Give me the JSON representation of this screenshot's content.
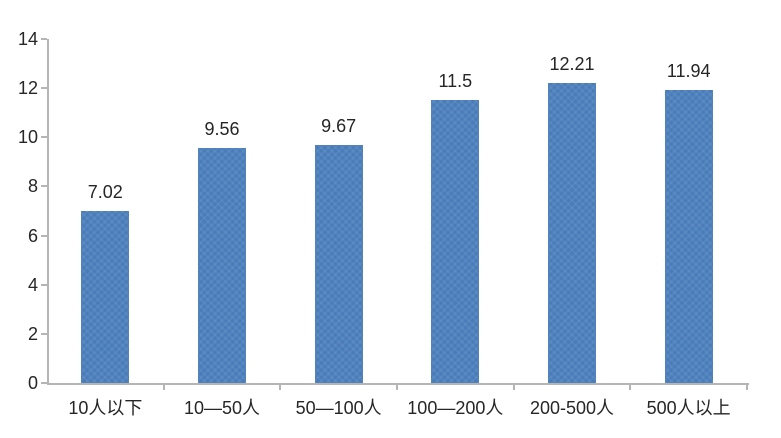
{
  "chart_data": {
    "type": "bar",
    "title": "",
    "xlabel": "",
    "ylabel": "",
    "categories": [
      "10人以下",
      "10—50人",
      "50—100人",
      "100—200人",
      "200-500人",
      "500人以上"
    ],
    "values": [
      7.02,
      9.56,
      9.67,
      11.5,
      12.21,
      11.94
    ],
    "value_labels": [
      "7.02",
      "9.56",
      "9.67",
      "11.5",
      "12.21",
      "11.94"
    ],
    "ylim": [
      0,
      14
    ],
    "yticks": [
      0,
      2,
      4,
      6,
      8,
      10,
      12,
      14
    ],
    "grid": false,
    "legend": false,
    "colors": {
      "bar": "#4a7ebc",
      "axis": "#b5b5b5",
      "text": "#262626",
      "background": "#ffffff"
    }
  }
}
